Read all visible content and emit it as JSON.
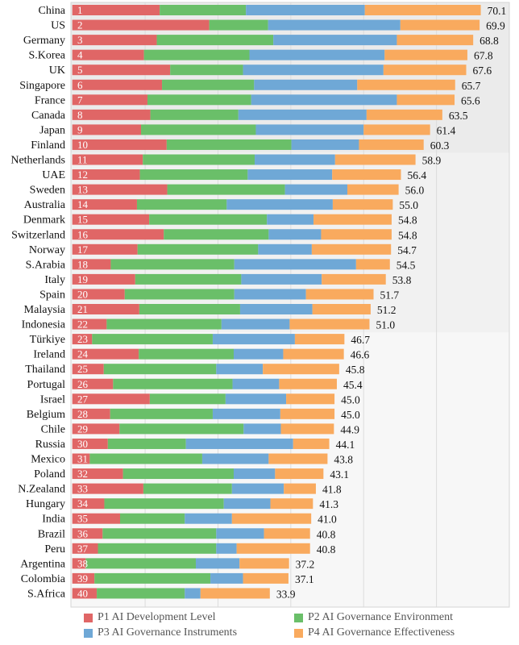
{
  "chart_data": {
    "type": "bar",
    "orientation": "horizontal",
    "stacked": true,
    "title": "",
    "xlabel": "",
    "ylabel": "",
    "xlim": [
      0,
      75
    ],
    "grid": true,
    "gridline_step": 12.5,
    "legend_position": "bottom",
    "categories": [
      "China",
      "US",
      "Germany",
      "S.Korea",
      "UK",
      "Singapore",
      "France",
      "Canada",
      "Japan",
      "Finland",
      "Netherlands",
      "UAE",
      "Sweden",
      "Australia",
      "Denmark",
      "Switzerland",
      "Norway",
      "S.Arabia",
      "Italy",
      "Spain",
      "Malaysia",
      "Indonesia",
      "Türkiye",
      "Ireland",
      "Thailand",
      "Portugal",
      "Israel",
      "Belgium",
      "Chile",
      "Russia",
      "Mexico",
      "Poland",
      "N.Zealand",
      "Hungary",
      "India",
      "Brazil",
      "Peru",
      "Argentina",
      "Colombia",
      "S.Africa"
    ],
    "ranks": [
      "1",
      "2",
      "3",
      "4",
      "5",
      "6",
      "7",
      "8",
      "9",
      "10",
      "11",
      "12",
      "13",
      "14",
      "15",
      "16",
      "17",
      "18",
      "19",
      "20",
      "21",
      "22",
      "23",
      "24",
      "25",
      "26",
      "27",
      "28",
      "29",
      "30",
      "31",
      "32",
      "33",
      "34",
      "35",
      "36",
      "37",
      "38",
      "39",
      "40"
    ],
    "totals": [
      "70.1",
      "69.9",
      "68.8",
      "67.8",
      "67.6",
      "65.7",
      "65.6",
      "63.5",
      "61.4",
      "60.3",
      "58.9",
      "56.4",
      "56.0",
      "55.0",
      "54.8",
      "54.8",
      "54.7",
      "54.5",
      "53.8",
      "51.7",
      "51.2",
      "51.0",
      "46.7",
      "46.6",
      "45.8",
      "45.4",
      "45.0",
      "45.0",
      "44.9",
      "44.1",
      "43.8",
      "43.1",
      "41.8",
      "41.3",
      "41.0",
      "40.8",
      "40.8",
      "37.2",
      "37.1",
      "33.9"
    ],
    "series": [
      {
        "name": "P1 AI Development Level",
        "color": "#E06666",
        "values": [
          15.0,
          23.5,
          14.5,
          12.3,
          16.8,
          15.4,
          12.9,
          13.4,
          11.8,
          16.2,
          12.1,
          11.6,
          16.3,
          11.1,
          13.2,
          15.7,
          11.2,
          6.6,
          10.8,
          9.0,
          11.5,
          5.9,
          3.4,
          11.4,
          5.4,
          7.0,
          13.3,
          6.5,
          8.1,
          6.1,
          3.0,
          8.7,
          12.2,
          5.5,
          8.2,
          5.2,
          4.4,
          2.3,
          3.8,
          4.2
        ]
      },
      {
        "name": "P2 AI Governance Environment",
        "color": "#6ABF69",
        "values": [
          14.8,
          10.1,
          20.0,
          18.1,
          12.5,
          15.8,
          17.8,
          15.1,
          19.7,
          21.4,
          19.2,
          18.5,
          20.2,
          15.4,
          20.2,
          18.0,
          20.7,
          21.2,
          18.2,
          18.8,
          17.3,
          19.7,
          20.7,
          16.3,
          19.3,
          20.5,
          13.0,
          17.6,
          21.3,
          13.4,
          19.3,
          19.0,
          15.2,
          20.5,
          11.1,
          19.5,
          20.3,
          18.9,
          19.9,
          15.1
        ]
      },
      {
        "name": "P3 AI Governance Instruments",
        "color": "#6FA8D6",
        "values": [
          20.4,
          22.7,
          21.2,
          23.2,
          24.1,
          17.7,
          25.0,
          22.0,
          18.5,
          11.6,
          13.8,
          14.5,
          10.7,
          18.2,
          8.0,
          9.0,
          9.2,
          20.9,
          13.8,
          12.3,
          12.4,
          11.7,
          14.1,
          8.5,
          8.0,
          8.0,
          10.4,
          11.6,
          6.4,
          18.4,
          11.4,
          7.1,
          8.9,
          8.0,
          8.1,
          8.2,
          3.5,
          7.5,
          5.6,
          2.7
        ]
      },
      {
        "name": "P4 AI Governance Effectiveness",
        "color": "#F9AA5E",
        "values": [
          19.9,
          13.6,
          13.1,
          14.2,
          14.2,
          16.8,
          9.9,
          13.0,
          11.4,
          11.1,
          13.8,
          11.8,
          8.8,
          10.3,
          13.4,
          12.1,
          13.6,
          5.8,
          11.0,
          11.6,
          10.0,
          13.7,
          8.5,
          10.4,
          13.1,
          9.9,
          8.3,
          9.3,
          9.1,
          6.2,
          10.1,
          8.3,
          5.5,
          7.3,
          13.6,
          7.9,
          12.6,
          8.5,
          7.8,
          11.9
        ]
      }
    ],
    "background_bands": [
      {
        "from_rank": 1,
        "to_rank": 10,
        "color": "#EBEBEB"
      },
      {
        "from_rank": 11,
        "to_rank": 22,
        "color": "#F1F1F1"
      },
      {
        "from_rank": 23,
        "to_rank": 40,
        "color": "#F7F7F7"
      }
    ]
  },
  "legend": {
    "items": [
      {
        "label": "P1 AI Development Level",
        "color": "#E06666"
      },
      {
        "label": "P2 AI Governance Environment",
        "color": "#6ABF69"
      },
      {
        "label": "P3 AI Governance Instruments",
        "color": "#6FA8D6"
      },
      {
        "label": "P4 AI Governance Effectiveness",
        "color": "#F9AA5E"
      }
    ]
  }
}
